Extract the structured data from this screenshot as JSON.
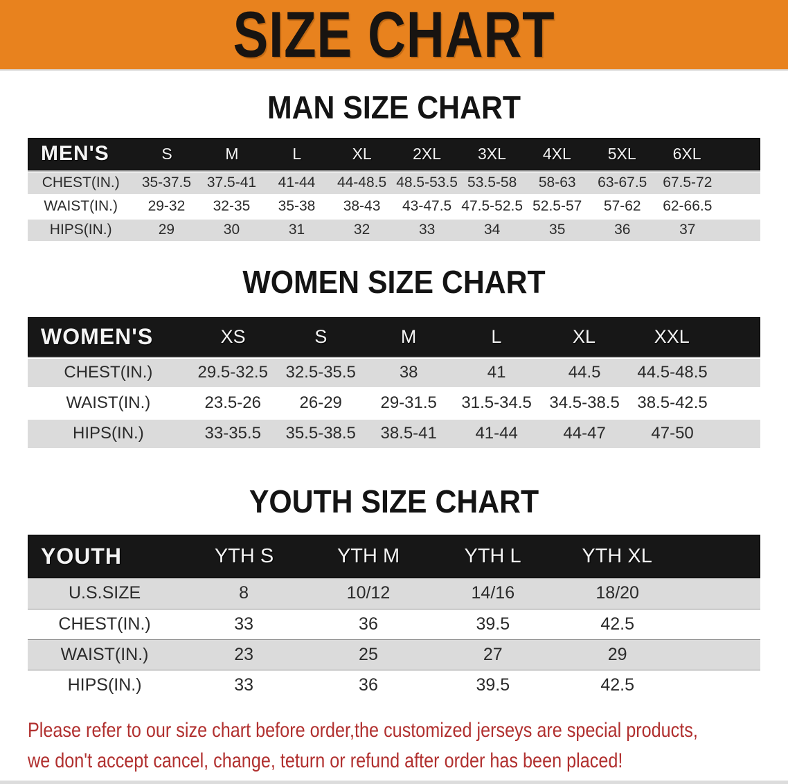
{
  "banner": {
    "title": "SIZE CHART"
  },
  "sections": [
    {
      "id": "men",
      "heading": "MAN SIZE CHART",
      "group_label": "MEN'S",
      "columns": [
        "S",
        "M",
        "L",
        "XL",
        "2XL",
        "3XL",
        "4XL",
        "5XL",
        "6XL"
      ],
      "rows": [
        {
          "label": "CHEST(IN.)",
          "values": [
            "35-37.5",
            "37.5-41",
            "41-44",
            "44-48.5",
            "48.5-53.5",
            "53.5-58",
            "58-63",
            "63-67.5",
            "67.5-72"
          ]
        },
        {
          "label": "WAIST(IN.)",
          "values": [
            "29-32",
            "32-35",
            "35-38",
            "38-43",
            "43-47.5",
            "47.5-52.5",
            "52.5-57",
            "57-62",
            "62-66.5"
          ]
        },
        {
          "label": "HIPS(IN.)",
          "values": [
            "29",
            "30",
            "31",
            "32",
            "33",
            "34",
            "35",
            "36",
            "37"
          ]
        }
      ]
    },
    {
      "id": "women",
      "heading": "WOMEN SIZE CHART",
      "group_label": "WOMEN'S",
      "columns": [
        "XS",
        "S",
        "M",
        "L",
        "XL",
        "XXL"
      ],
      "rows": [
        {
          "label": "CHEST(IN.)",
          "values": [
            "29.5-32.5",
            "32.5-35.5",
            "38",
            "41",
            "44.5",
            "44.5-48.5"
          ]
        },
        {
          "label": "WAIST(IN.)",
          "values": [
            "23.5-26",
            "26-29",
            "29-31.5",
            "31.5-34.5",
            "34.5-38.5",
            "38.5-42.5"
          ]
        },
        {
          "label": "HIPS(IN.)",
          "values": [
            "33-35.5",
            "35.5-38.5",
            "38.5-41",
            "41-44",
            "44-47",
            "47-50"
          ]
        }
      ]
    },
    {
      "id": "youth",
      "heading": "YOUTH SIZE CHART",
      "group_label": "YOUTH",
      "columns": [
        "YTH S",
        "YTH M",
        "YTH L",
        "YTH XL"
      ],
      "rows": [
        {
          "label": "U.S.SIZE",
          "values": [
            "8",
            "10/12",
            "14/16",
            "18/20"
          ]
        },
        {
          "label": "CHEST(IN.)",
          "values": [
            "33",
            "36",
            "39.5",
            "42.5"
          ]
        },
        {
          "label": "WAIST(IN.)",
          "values": [
            "23",
            "25",
            "27",
            "29"
          ]
        },
        {
          "label": "HIPS(IN.)",
          "values": [
            "33",
            "36",
            "39.5",
            "42.5"
          ]
        }
      ]
    }
  ],
  "disclaimer": {
    "line1": "Please refer to our size chart before order,the customized jerseys are special products,",
    "line2": "we don't accept cancel, change, teturn or refund after order has been placed!"
  },
  "colors": {
    "banner_orange": "#E8821E",
    "header_black": "#171717",
    "row_gray": "#DBDBDB",
    "row_white": "#FFFFFF",
    "disclaimer_red": "#B1302F"
  }
}
